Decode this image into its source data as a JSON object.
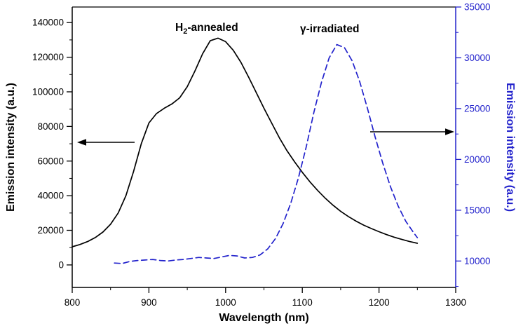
{
  "chart_data": {
    "type": "line",
    "title": "",
    "xlabel": "Wavelength (nm)",
    "ylabel_left": "Emission intensity (a.u.)",
    "ylabel_right": "Emission intensity (a.u.)",
    "xlim": [
      800,
      1300
    ],
    "xticks": [
      800,
      900,
      1000,
      1100,
      1200,
      1300
    ],
    "x_minor_step": 50,
    "ylim_left": [
      -13000,
      149000
    ],
    "yticks_left": [
      0,
      20000,
      40000,
      60000,
      80000,
      100000,
      120000,
      140000
    ],
    "ylim_right": [
      7400,
      35000
    ],
    "yticks_right": [
      10000,
      15000,
      20000,
      25000,
      30000,
      35000
    ],
    "grid": false,
    "legend": "none",
    "colors": {
      "left_axis": "#000000",
      "right_axis": "#2222cc"
    },
    "annotations": {
      "annealed": {
        "pre": "H",
        "sub": "2",
        "post": "-annealed"
      },
      "gamma": {
        "text": "γ-irradiated"
      }
    },
    "series": [
      {
        "name": "h2-annealed",
        "axis": "left",
        "style": "solid",
        "color": "#000000",
        "points": [
          [
            800,
            10500
          ],
          [
            810,
            11800
          ],
          [
            820,
            13500
          ],
          [
            830,
            15800
          ],
          [
            840,
            19000
          ],
          [
            850,
            23500
          ],
          [
            860,
            30000
          ],
          [
            870,
            40000
          ],
          [
            880,
            54000
          ],
          [
            890,
            70000
          ],
          [
            900,
            82000
          ],
          [
            910,
            87500
          ],
          [
            920,
            90500
          ],
          [
            930,
            93000
          ],
          [
            940,
            96500
          ],
          [
            950,
            103000
          ],
          [
            960,
            112000
          ],
          [
            970,
            122000
          ],
          [
            980,
            129500
          ],
          [
            990,
            131000
          ],
          [
            1000,
            129000
          ],
          [
            1010,
            124000
          ],
          [
            1020,
            117000
          ],
          [
            1030,
            108500
          ],
          [
            1040,
            99500
          ],
          [
            1050,
            90500
          ],
          [
            1060,
            82000
          ],
          [
            1070,
            73500
          ],
          [
            1080,
            66000
          ],
          [
            1090,
            59500
          ],
          [
            1100,
            53500
          ],
          [
            1110,
            48000
          ],
          [
            1120,
            43000
          ],
          [
            1130,
            38500
          ],
          [
            1140,
            34500
          ],
          [
            1150,
            31000
          ],
          [
            1160,
            28000
          ],
          [
            1170,
            25300
          ],
          [
            1180,
            23000
          ],
          [
            1190,
            21000
          ],
          [
            1200,
            19200
          ],
          [
            1210,
            17500
          ],
          [
            1220,
            16000
          ],
          [
            1230,
            14700
          ],
          [
            1240,
            13500
          ],
          [
            1250,
            12500
          ]
        ]
      },
      {
        "name": "gamma-irradiated",
        "axis": "right",
        "style": "dashed",
        "color": "#2222cc",
        "points": [
          [
            855,
            9800
          ],
          [
            865,
            9750
          ],
          [
            875,
            9950
          ],
          [
            885,
            10050
          ],
          [
            895,
            10100
          ],
          [
            905,
            10150
          ],
          [
            915,
            10050
          ],
          [
            925,
            10000
          ],
          [
            935,
            10100
          ],
          [
            945,
            10150
          ],
          [
            955,
            10250
          ],
          [
            965,
            10350
          ],
          [
            975,
            10300
          ],
          [
            985,
            10250
          ],
          [
            995,
            10400
          ],
          [
            1005,
            10550
          ],
          [
            1015,
            10500
          ],
          [
            1025,
            10300
          ],
          [
            1035,
            10350
          ],
          [
            1045,
            10600
          ],
          [
            1055,
            11200
          ],
          [
            1065,
            12200
          ],
          [
            1075,
            13700
          ],
          [
            1085,
            15700
          ],
          [
            1095,
            18200
          ],
          [
            1105,
            21200
          ],
          [
            1115,
            24600
          ],
          [
            1125,
            27600
          ],
          [
            1135,
            30000
          ],
          [
            1145,
            31300
          ],
          [
            1155,
            31000
          ],
          [
            1165,
            29700
          ],
          [
            1175,
            27600
          ],
          [
            1185,
            25000
          ],
          [
            1195,
            22200
          ],
          [
            1205,
            19600
          ],
          [
            1215,
            17300
          ],
          [
            1225,
            15400
          ],
          [
            1235,
            13900
          ],
          [
            1245,
            12800
          ],
          [
            1250,
            12300
          ]
        ]
      }
    ]
  }
}
